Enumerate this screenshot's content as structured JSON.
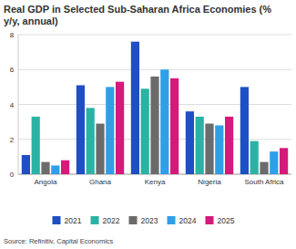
{
  "chart_data": {
    "type": "bar",
    "title": "Real GDP in Selected Sub-Saharan Africa Economies (% y/y, annual)",
    "source": "Source: Refinitiv, Capital Economics",
    "categories": [
      "Angola",
      "Ghana",
      "Kenya",
      "Nigeria",
      "South Africa"
    ],
    "series": [
      {
        "name": "2021",
        "color": "#1f4fc4",
        "values": [
          1.1,
          5.1,
          7.6,
          3.6,
          5.0
        ]
      },
      {
        "name": "2022",
        "color": "#2ab3a4",
        "values": [
          3.3,
          3.8,
          4.9,
          3.3,
          1.9
        ]
      },
      {
        "name": "2023",
        "color": "#6b6b6b",
        "values": [
          0.7,
          2.9,
          5.6,
          2.9,
          0.7
        ]
      },
      {
        "name": "2024",
        "color": "#2f9fe8",
        "values": [
          0.5,
          5.0,
          6.0,
          2.8,
          1.3
        ]
      },
      {
        "name": "2025",
        "color": "#d6197b",
        "values": [
          0.8,
          5.3,
          5.5,
          3.3,
          1.5
        ]
      }
    ],
    "ylim": [
      0,
      8
    ],
    "yticks": [
      0,
      2,
      4,
      6,
      8
    ],
    "grid": true,
    "legend": "bottom"
  }
}
